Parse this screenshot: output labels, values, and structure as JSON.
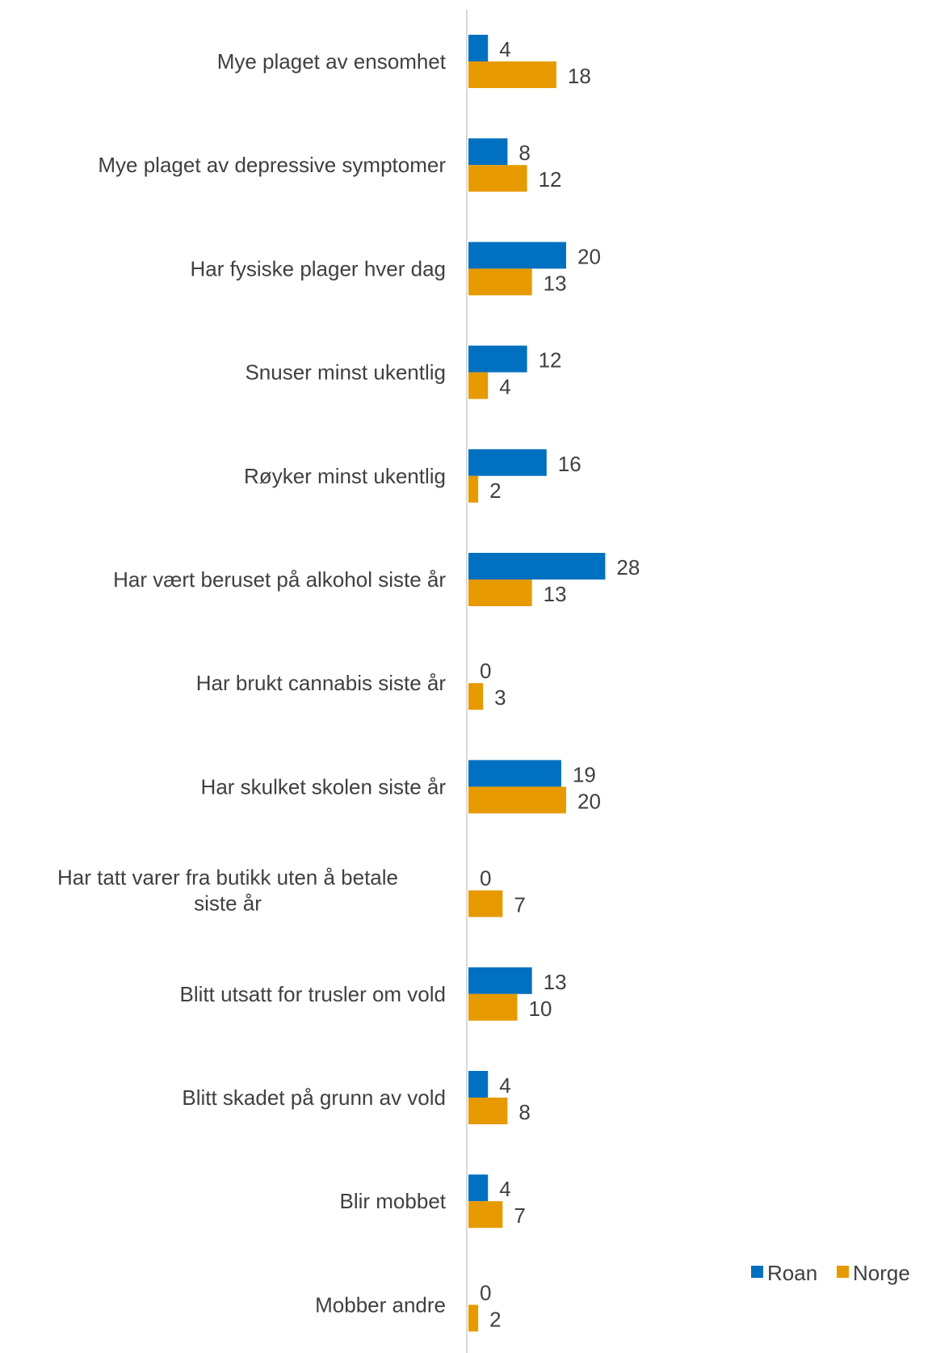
{
  "chart_data": {
    "type": "bar",
    "orientation": "horizontal",
    "categories": [
      "Mye plaget av ensomhet",
      "Mye plaget av depressive symptomer",
      "Har fysiske plager hver dag",
      "Snuser minst ukentlig",
      "Røyker minst ukentlig",
      "Har vært beruset på alkohol siste år",
      "Har brukt cannabis siste år",
      "Har skulket skolen siste år",
      "Har tatt varer fra butikk uten å betale siste år",
      "Blitt utsatt for trusler om vold",
      "Blitt skadet på grunn av vold",
      "Blir mobbet",
      "Mobber andre"
    ],
    "series": [
      {
        "name": "Roan",
        "color": "#0070C0",
        "values": [
          4,
          8,
          20,
          12,
          16,
          28,
          0,
          19,
          0,
          13,
          4,
          4,
          0
        ]
      },
      {
        "name": "Norge",
        "color": "#E69A00",
        "values": [
          18,
          12,
          13,
          4,
          2,
          13,
          3,
          20,
          7,
          10,
          8,
          7,
          2
        ]
      }
    ],
    "xlim": [
      0,
      100
    ],
    "grid": false,
    "legend_position": "bottom-right",
    "data_labels": true
  }
}
